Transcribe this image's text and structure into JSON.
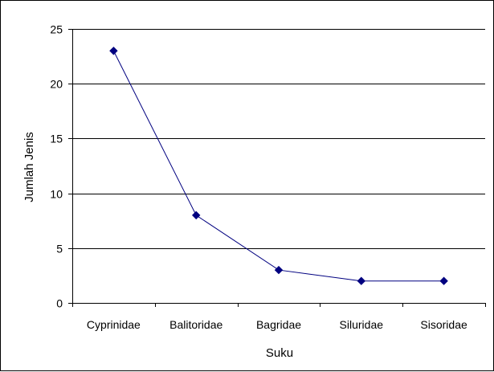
{
  "chart_data": {
    "type": "line",
    "xlabel": "Suku",
    "ylabel": "Jumlah Jenis",
    "categories": [
      "Cyprinidae",
      "Balitoridae",
      "Bagridae",
      "Siluridae",
      "Sisoridae"
    ],
    "series": [
      {
        "values": [
          23,
          8,
          3,
          2,
          2
        ],
        "color": "#000080",
        "marker": "diamond"
      }
    ],
    "ylim": [
      0,
      25
    ],
    "yticks": [
      "0",
      "5",
      "10",
      "15",
      "20",
      "25"
    ],
    "grid": "horizontal",
    "legend": "none"
  }
}
